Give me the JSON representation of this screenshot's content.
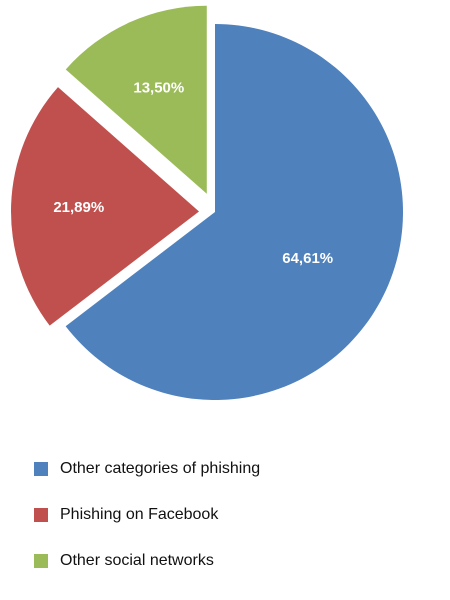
{
  "chart_data": {
    "type": "pie",
    "title": "",
    "slices": [
      {
        "label": "Other categories of phishing",
        "value": 64.61,
        "value_label": "64,61%",
        "color": "#4f81bd"
      },
      {
        "label": "Phishing on Facebook",
        "value": 21.89,
        "value_label": "21,89%",
        "color": "#c0504d"
      },
      {
        "label": "Other social networks",
        "value": 13.5,
        "value_label": "13,50%",
        "color": "#9bbb59"
      }
    ],
    "legend_position": "bottom"
  }
}
